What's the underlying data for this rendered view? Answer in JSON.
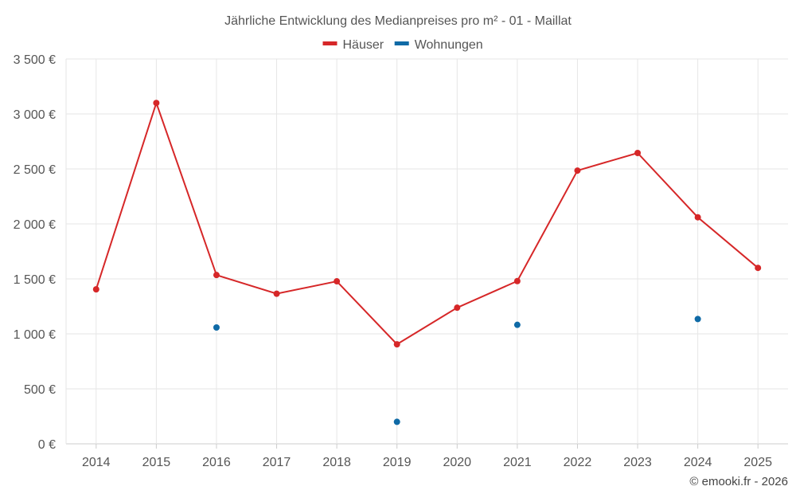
{
  "chart_data": {
    "type": "line",
    "title": "Jährliche Entwicklung des Medianpreises pro m² - 01 - Maillat",
    "categories": [
      "2014",
      "2015",
      "2016",
      "2017",
      "2018",
      "2019",
      "2020",
      "2021",
      "2022",
      "2023",
      "2024",
      "2025"
    ],
    "ylim": [
      0,
      3500
    ],
    "yticks": [
      0,
      500,
      1000,
      1500,
      2000,
      2500,
      3000,
      3500
    ],
    "ytick_labels": [
      "0 €",
      "500 €",
      "1 000 €",
      "1 500 €",
      "2 000 €",
      "2 500 €",
      "3 000 €",
      "3 500 €"
    ],
    "grid": true,
    "legend_position": "top-center",
    "series": [
      {
        "name": "Häuser",
        "color": "#d62728",
        "mode": "line+markers",
        "values": [
          1405,
          3100,
          1535,
          1365,
          1478,
          905,
          1238,
          1480,
          2485,
          2645,
          2060,
          1600
        ]
      },
      {
        "name": "Wohnungen",
        "color": "#0f6aa6",
        "mode": "markers",
        "values": [
          null,
          null,
          1058,
          null,
          null,
          200,
          null,
          1082,
          null,
          null,
          1135,
          null
        ]
      }
    ]
  },
  "credit": "© emooki.fr - 2026"
}
